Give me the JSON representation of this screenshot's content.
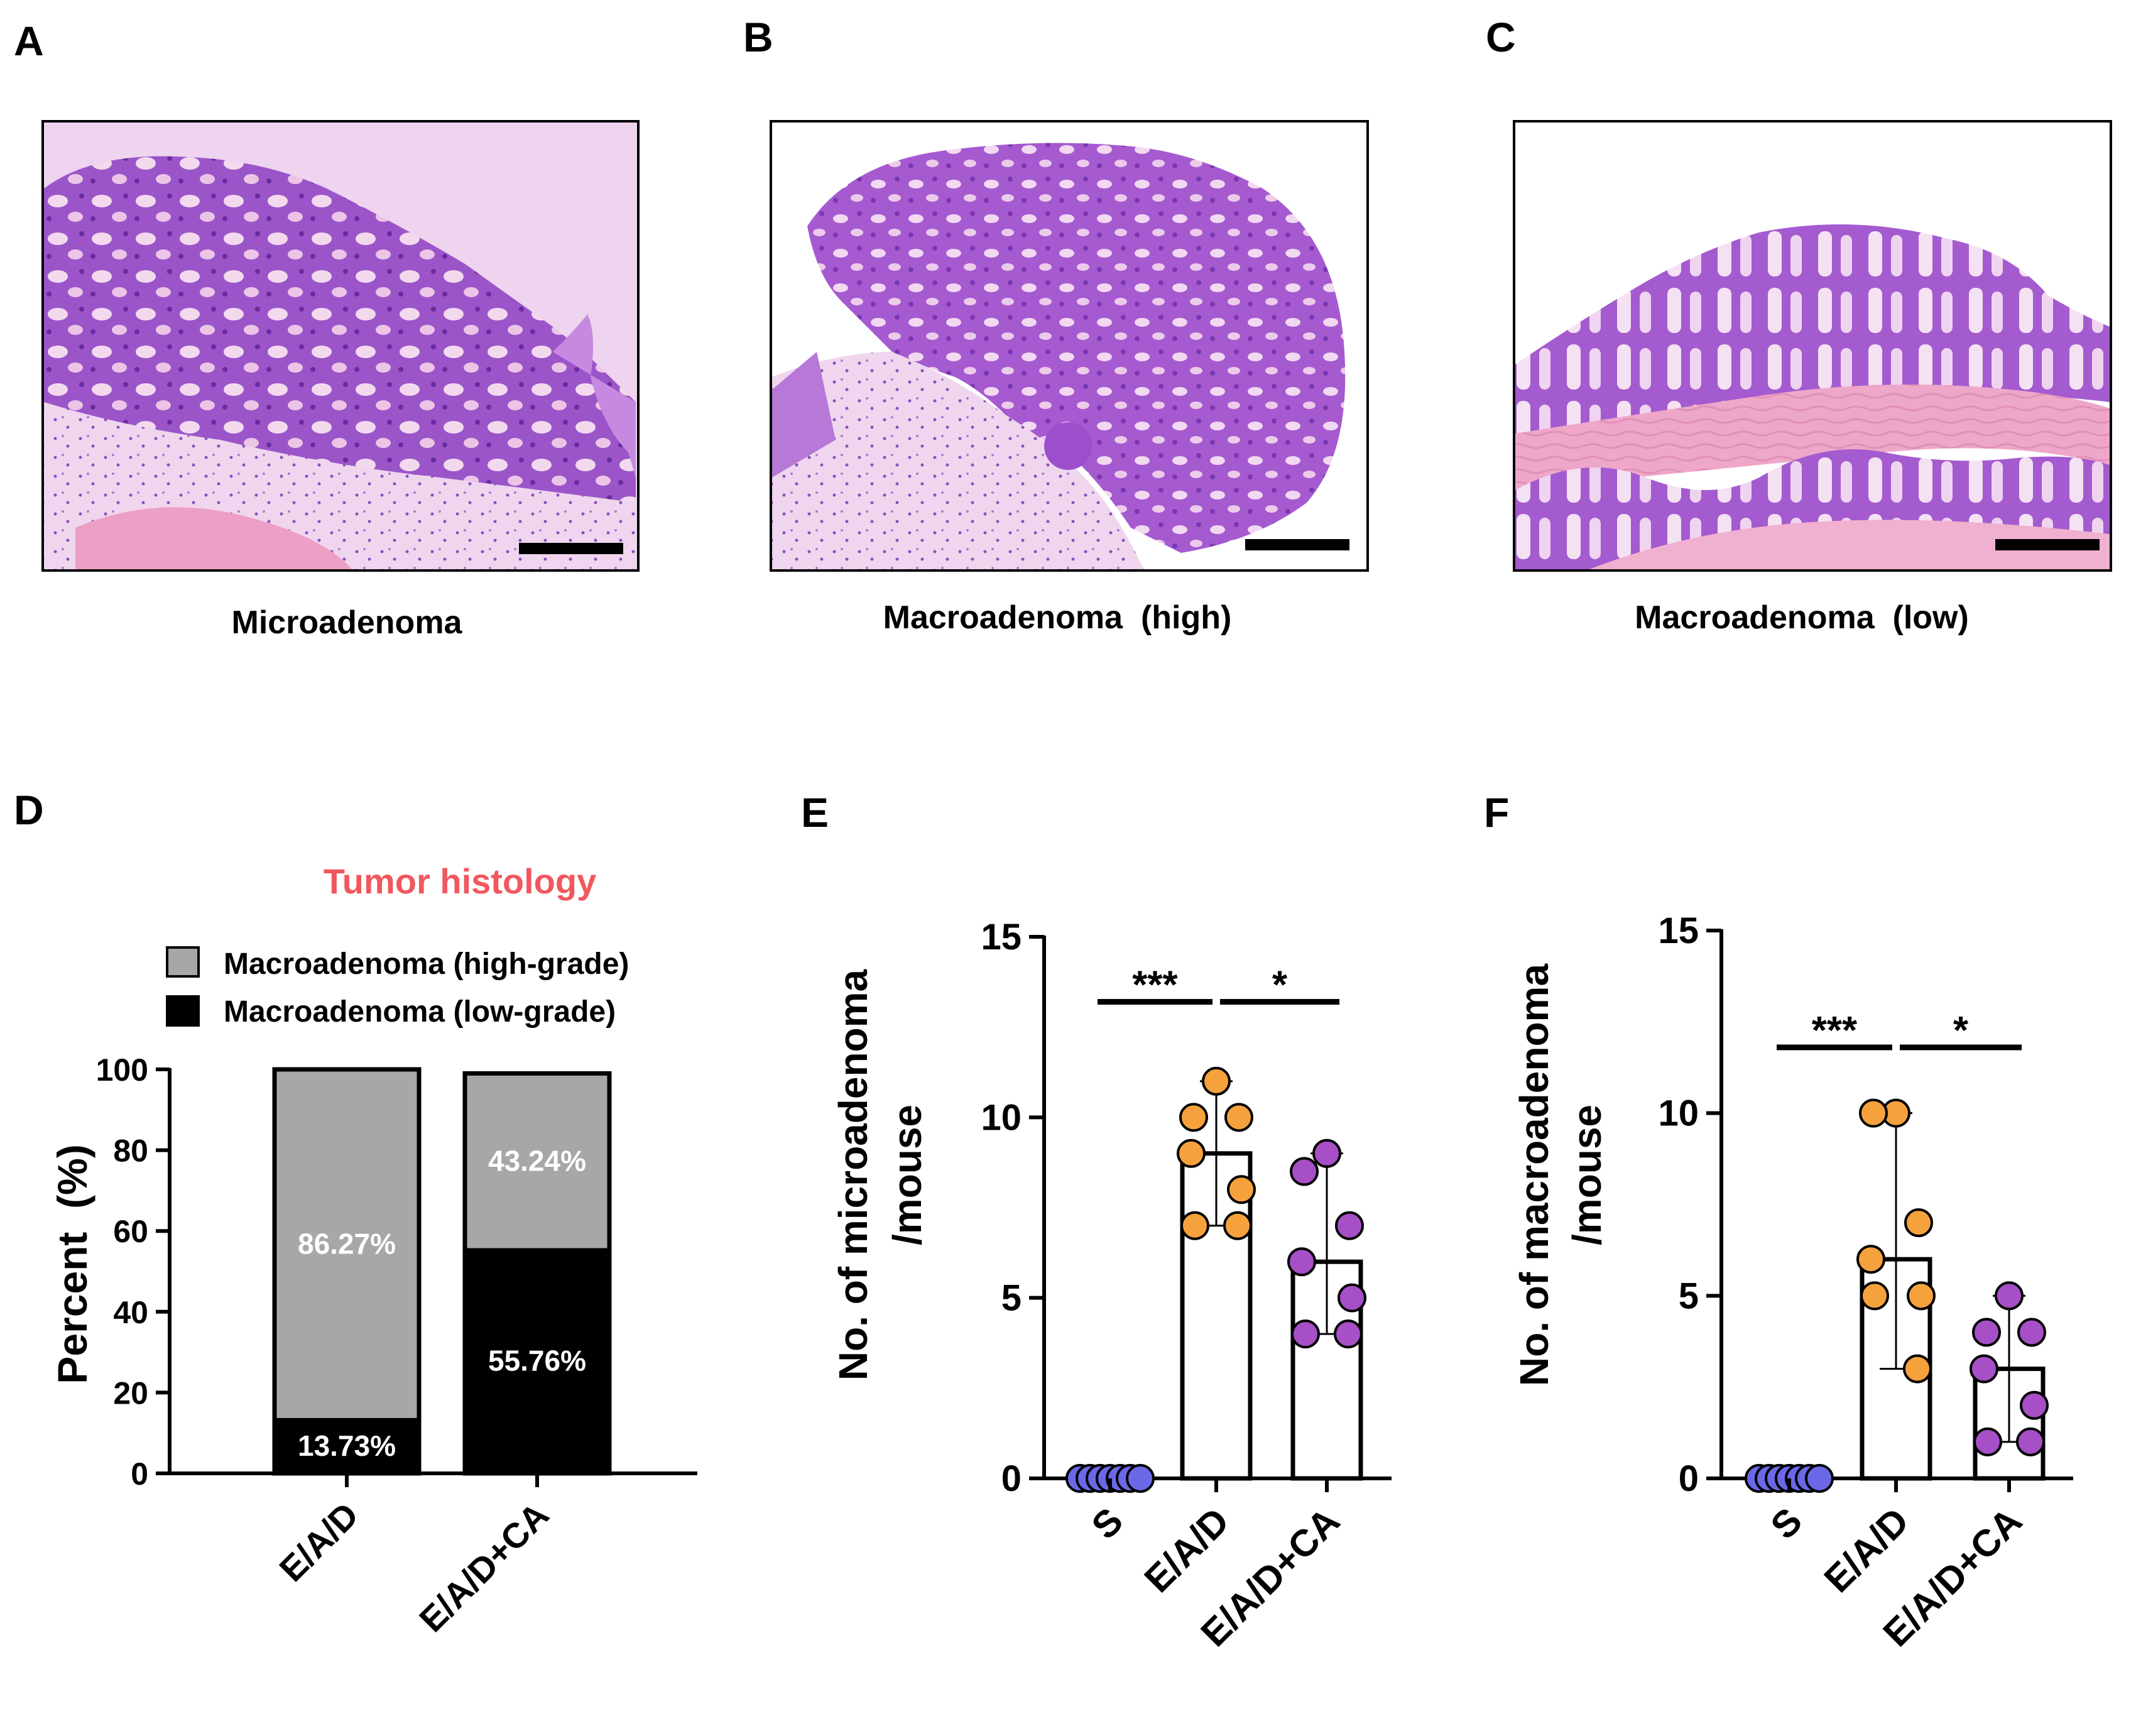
{
  "panels": {
    "A": {
      "letter": "A",
      "caption": "Microadenoma"
    },
    "B": {
      "letter": "B",
      "caption": "Macroadenoma  (high)"
    },
    "C": {
      "letter": "C",
      "caption": "Macroadenoma  (low)"
    },
    "D": {
      "letter": "D"
    },
    "E": {
      "letter": "E"
    },
    "F": {
      "letter": "F"
    }
  },
  "colors": {
    "high_grade": "#a7a7a9",
    "low_grade": "#000000",
    "title_red": "#f0585e",
    "s_dot": "#6b68e8",
    "ead_dot": "#f5a23c",
    "eadca_dot": "#a64fc6",
    "he_purple": "#8a3db5",
    "he_pink": "#e9a0cf"
  },
  "chart_data": [
    {
      "panel": "D",
      "type": "bar",
      "stacked": true,
      "title": "Tumor histology",
      "ylabel": "Percent  (%)",
      "xlabel": "",
      "ylim": [
        0,
        100
      ],
      "yticks": [
        "0",
        "20",
        "40",
        "60",
        "80",
        "100"
      ],
      "categories": [
        "E/A/D",
        "E/A/D+CA"
      ],
      "series": [
        {
          "name": "Macroadenoma (low-grade)",
          "values": [
            13.73,
            55.76
          ],
          "labels": [
            "13.73%",
            "55.76%"
          ],
          "color": "#000000"
        },
        {
          "name": "Macroadenoma (high-grade)",
          "values": [
            86.27,
            43.24
          ],
          "labels": [
            "86.27%",
            "43.24%"
          ],
          "color": "#a7a7a9"
        }
      ],
      "legend": [
        "Macroadenoma (high-grade)",
        "Macroadenoma (low-grade)"
      ]
    },
    {
      "panel": "E",
      "type": "bar",
      "ylabel_line1": "No. of microadenoma",
      "ylabel_line2": "/mouse",
      "ylim": [
        0,
        15
      ],
      "yticks": [
        "0",
        "5",
        "10",
        "15"
      ],
      "categories": [
        "S",
        "E/A/D",
        "E/A/D+CA"
      ],
      "values": [
        0,
        9,
        6
      ],
      "error": [
        [
          0,
          0
        ],
        [
          7,
          11
        ],
        [
          4,
          9
        ]
      ],
      "points": [
        [
          0,
          0,
          0,
          0,
          0,
          0,
          0
        ],
        [
          11,
          10,
          10,
          9,
          8,
          7,
          7
        ],
        [
          9,
          8.5,
          7,
          6,
          5,
          4,
          4
        ]
      ],
      "significance": [
        {
          "from": 0,
          "to": 1,
          "y": 13.2,
          "label": "***"
        },
        {
          "from": 1,
          "to": 2,
          "y": 13.2,
          "label": "*"
        }
      ]
    },
    {
      "panel": "F",
      "type": "bar",
      "ylabel_line1": "No. of macroadenoma",
      "ylabel_line2": "/mouse",
      "ylim": [
        0,
        15
      ],
      "yticks": [
        "0",
        "5",
        "10",
        "15"
      ],
      "categories": [
        "S",
        "E/A/D",
        "E/A/D+CA"
      ],
      "values": [
        0,
        6,
        3
      ],
      "error": [
        [
          0,
          0
        ],
        [
          3,
          10
        ],
        [
          1,
          5
        ]
      ],
      "points": [
        [
          0,
          0,
          0,
          0,
          0,
          0,
          0
        ],
        [
          10,
          10,
          7,
          6,
          5,
          5,
          3
        ],
        [
          5,
          4,
          4,
          3,
          2,
          1,
          1
        ]
      ],
      "significance": [
        {
          "from": 0,
          "to": 1,
          "y": 11.8,
          "label": "***"
        },
        {
          "from": 1,
          "to": 2,
          "y": 11.8,
          "label": "*"
        }
      ]
    }
  ]
}
